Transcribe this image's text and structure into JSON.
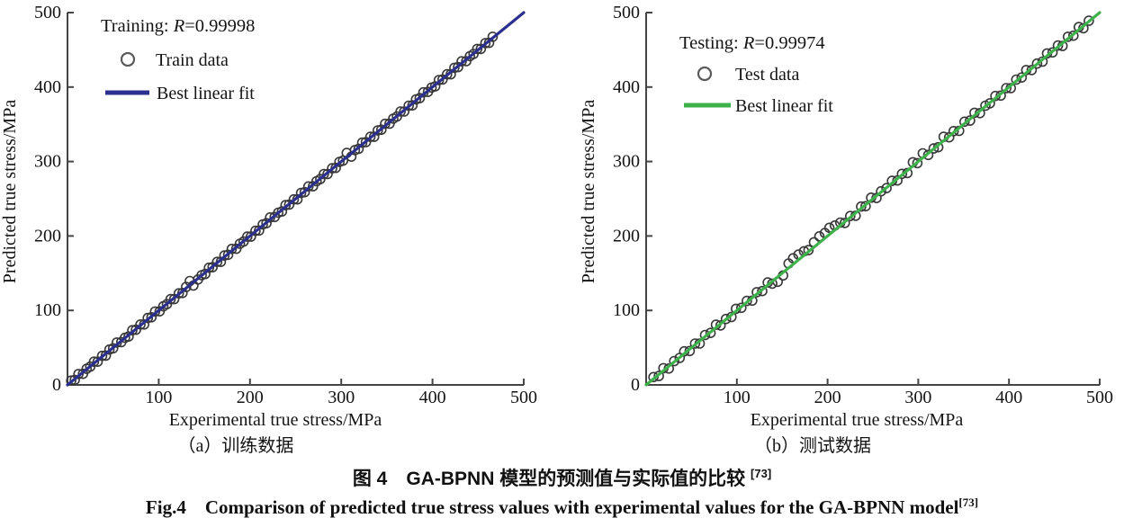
{
  "figure": {
    "caption_zh": "图 4　GA-BPNN 模型的预测值与实际值的比较 ",
    "caption_zh_sup": "[73]",
    "caption_en": "Fig.4 Comparison of predicted true stress values with experimental values for the GA-BPNN model",
    "caption_en_sup": "[73]"
  },
  "colors": {
    "train_line": "#2b2f8e",
    "test_line": "#3eb24a",
    "marker_edge": "#383838",
    "legend_marker": "#5a5a5a",
    "axis": "#454545",
    "text": "#141414"
  },
  "chart_data": [
    {
      "type": "scatter",
      "panel": "a",
      "title_prefix": "Training: ",
      "r_label": "R",
      "r_value": "=0.99998",
      "legend": [
        "Train data",
        "Best linear fit"
      ],
      "xlabel": "Experimental true stress/MPa",
      "ylabel": "Predicted true stress/MPa",
      "subcaption": "（a）训练数据",
      "xlim": [
        0,
        500
      ],
      "ylim": [
        0,
        500
      ],
      "xticks": [
        0,
        100,
        200,
        300,
        400,
        500
      ],
      "yticks": [
        0,
        100,
        200,
        300,
        400,
        500
      ],
      "grid": false,
      "legend_position": "upper-left-inside",
      "fit_line": [
        [
          0,
          0
        ],
        [
          500,
          500
        ]
      ],
      "points": [
        [
          4,
          5.8
        ],
        [
          8,
          6.8
        ],
        [
          12,
          14.6
        ],
        [
          17,
          14.8
        ],
        [
          21,
          21.6
        ],
        [
          25,
          24.5
        ],
        [
          29,
          31.2
        ],
        [
          33,
          31.2
        ],
        [
          38,
          39
        ],
        [
          42,
          39.4
        ],
        [
          46,
          47.5
        ],
        [
          50,
          49.2
        ],
        [
          54,
          56.9
        ],
        [
          59,
          57.5
        ],
        [
          63,
          63.3
        ],
        [
          67,
          65
        ],
        [
          71,
          73.4
        ],
        [
          75,
          74.1
        ],
        [
          80,
          81.2
        ],
        [
          84,
          81.2
        ],
        [
          88,
          89.8
        ],
        [
          92,
          90.8
        ],
        [
          96,
          98.6
        ],
        [
          101,
          98.8
        ],
        [
          105,
          105.6
        ],
        [
          109,
          108.5
        ],
        [
          113,
          115.2
        ],
        [
          117,
          115.2
        ],
        [
          122,
          123
        ],
        [
          126,
          123.4
        ],
        [
          130,
          131.5
        ],
        [
          134,
          139.5
        ],
        [
          138,
          133.5
        ],
        [
          143,
          141.5
        ],
        [
          147,
          147.3
        ],
        [
          151,
          149
        ],
        [
          155,
          157.4
        ],
        [
          159,
          158.1
        ],
        [
          164,
          165.2
        ],
        [
          168,
          165.2
        ],
        [
          172,
          173.8
        ],
        [
          176,
          174.8
        ],
        [
          180,
          182.6
        ],
        [
          185,
          182.8
        ],
        [
          189,
          189.6
        ],
        [
          193,
          192.5
        ],
        [
          197,
          199.2
        ],
        [
          201,
          199.2
        ],
        [
          206,
          207
        ],
        [
          210,
          207.4
        ],
        [
          214,
          215.5
        ],
        [
          218,
          217.2
        ],
        [
          222,
          224.9
        ],
        [
          227,
          225.5
        ],
        [
          231,
          231.3
        ],
        [
          235,
          233
        ],
        [
          239,
          241.4
        ],
        [
          243,
          242.1
        ],
        [
          248,
          249.2
        ],
        [
          252,
          249.2
        ],
        [
          256,
          257.8
        ],
        [
          260,
          258.8
        ],
        [
          264,
          266.6
        ],
        [
          269,
          266.8
        ],
        [
          273,
          273.6
        ],
        [
          277,
          276.5
        ],
        [
          281,
          283.2
        ],
        [
          285,
          283.2
        ],
        [
          290,
          291
        ],
        [
          294,
          291.4
        ],
        [
          298,
          299.5
        ],
        [
          302,
          301.2
        ],
        [
          306,
          311.5
        ],
        [
          311,
          306.5
        ],
        [
          315,
          315.3
        ],
        [
          319,
          317
        ],
        [
          323,
          325.4
        ],
        [
          327,
          326.1
        ],
        [
          332,
          333.2
        ],
        [
          336,
          333.2
        ],
        [
          340,
          341.8
        ],
        [
          344,
          342.8
        ],
        [
          348,
          350.6
        ],
        [
          353,
          350.8
        ],
        [
          357,
          357.6
        ],
        [
          361,
          360.5
        ],
        [
          365,
          367.2
        ],
        [
          369,
          367.2
        ],
        [
          374,
          375
        ],
        [
          378,
          375.4
        ],
        [
          382,
          383.5
        ],
        [
          386,
          385.2
        ],
        [
          390,
          392.9
        ],
        [
          395,
          393.5
        ],
        [
          399,
          399.3
        ],
        [
          403,
          401
        ],
        [
          407,
          409.4
        ],
        [
          411,
          410.1
        ],
        [
          416,
          417.2
        ],
        [
          420,
          417.2
        ],
        [
          424,
          425.8
        ],
        [
          428,
          426.8
        ],
        [
          432,
          434.6
        ],
        [
          437,
          434.8
        ],
        [
          441,
          441.6
        ],
        [
          445,
          444.5
        ],
        [
          449,
          451.2
        ],
        [
          453,
          451.2
        ],
        [
          458,
          459
        ],
        [
          462,
          459.4
        ],
        [
          466,
          467.5
        ]
      ]
    },
    {
      "type": "scatter",
      "panel": "b",
      "title_prefix": "Testing: ",
      "r_label": "R",
      "r_value": "=0.99974",
      "legend": [
        "Test data",
        "Best linear fit"
      ],
      "xlabel": "Experimental true stress/MPa",
      "ylabel": "Predicted true stress/MPa",
      "subcaption": "（b）测试数据",
      "xlim": [
        0,
        500
      ],
      "ylim": [
        0,
        500
      ],
      "xticks": [
        0,
        100,
        200,
        300,
        400,
        500
      ],
      "yticks": [
        0,
        100,
        200,
        300,
        400,
        500
      ],
      "grid": false,
      "legend_position": "upper-left-inside",
      "fit_line": [
        [
          0,
          0
        ],
        [
          500,
          500
        ]
      ],
      "points": [
        [
          8,
          10.5
        ],
        [
          14,
          12
        ],
        [
          19,
          22.5
        ],
        [
          25,
          22
        ],
        [
          31,
          32
        ],
        [
          37,
          36.2
        ],
        [
          42,
          45
        ],
        [
          48,
          45.5
        ],
        [
          54,
          55.5
        ],
        [
          59,
          55.5
        ],
        [
          65,
          67
        ],
        [
          71,
          69.8
        ],
        [
          77,
          80.8
        ],
        [
          82,
          79.8
        ],
        [
          88,
          88.5
        ],
        [
          94,
          91.2
        ],
        [
          99,
          102.2
        ],
        [
          105,
          103.5
        ],
        [
          111,
          112.8
        ],
        [
          117,
          113.2
        ],
        [
          122,
          124.5
        ],
        [
          128,
          126
        ],
        [
          134,
          137.5
        ],
        [
          139,
          136
        ],
        [
          145,
          138.5
        ],
        [
          151,
          147
        ],
        [
          157,
          163
        ],
        [
          162,
          170
        ],
        [
          168,
          175
        ],
        [
          174,
          179.5
        ],
        [
          179,
          181
        ],
        [
          185,
          191.5
        ],
        [
          191,
          199.5
        ],
        [
          197,
          204
        ],
        [
          202,
          211
        ],
        [
          208,
          214
        ],
        [
          214,
          218
        ],
        [
          219,
          217.5
        ],
        [
          225,
          226.8
        ],
        [
          231,
          227.2
        ],
        [
          237,
          239.5
        ],
        [
          242,
          240
        ],
        [
          248,
          251.5
        ],
        [
          254,
          251
        ],
        [
          259,
          260
        ],
        [
          265,
          264.2
        ],
        [
          271,
          274
        ],
        [
          277,
          274.5
        ],
        [
          282,
          283.5
        ],
        [
          288,
          284.5
        ],
        [
          294,
          299
        ],
        [
          299,
          297.8
        ],
        [
          305,
          311
        ],
        [
          311,
          308.8
        ],
        [
          317,
          317.5
        ],
        [
          322,
          319.2
        ],
        [
          328,
          333.2
        ],
        [
          334,
          332.5
        ],
        [
          339,
          340.8
        ],
        [
          345,
          341.2
        ],
        [
          351,
          353.5
        ],
        [
          357,
          355
        ],
        [
          362,
          365.5
        ],
        [
          368,
          365
        ],
        [
          374,
          375
        ],
        [
          379,
          378.2
        ],
        [
          385,
          388
        ],
        [
          391,
          388.5
        ],
        [
          397,
          398.5
        ],
        [
          402,
          398.5
        ],
        [
          408,
          410
        ],
        [
          414,
          412.8
        ],
        [
          419,
          422.8
        ],
        [
          425,
          422.8
        ],
        [
          431,
          431.5
        ],
        [
          437,
          434.2
        ],
        [
          442,
          445.2
        ],
        [
          448,
          446.5
        ],
        [
          454,
          455.8
        ],
        [
          459,
          455.2
        ],
        [
          465,
          467.5
        ],
        [
          471,
          469
        ],
        [
          477,
          480.5
        ],
        [
          482,
          479
        ],
        [
          488,
          489
        ]
      ]
    }
  ]
}
